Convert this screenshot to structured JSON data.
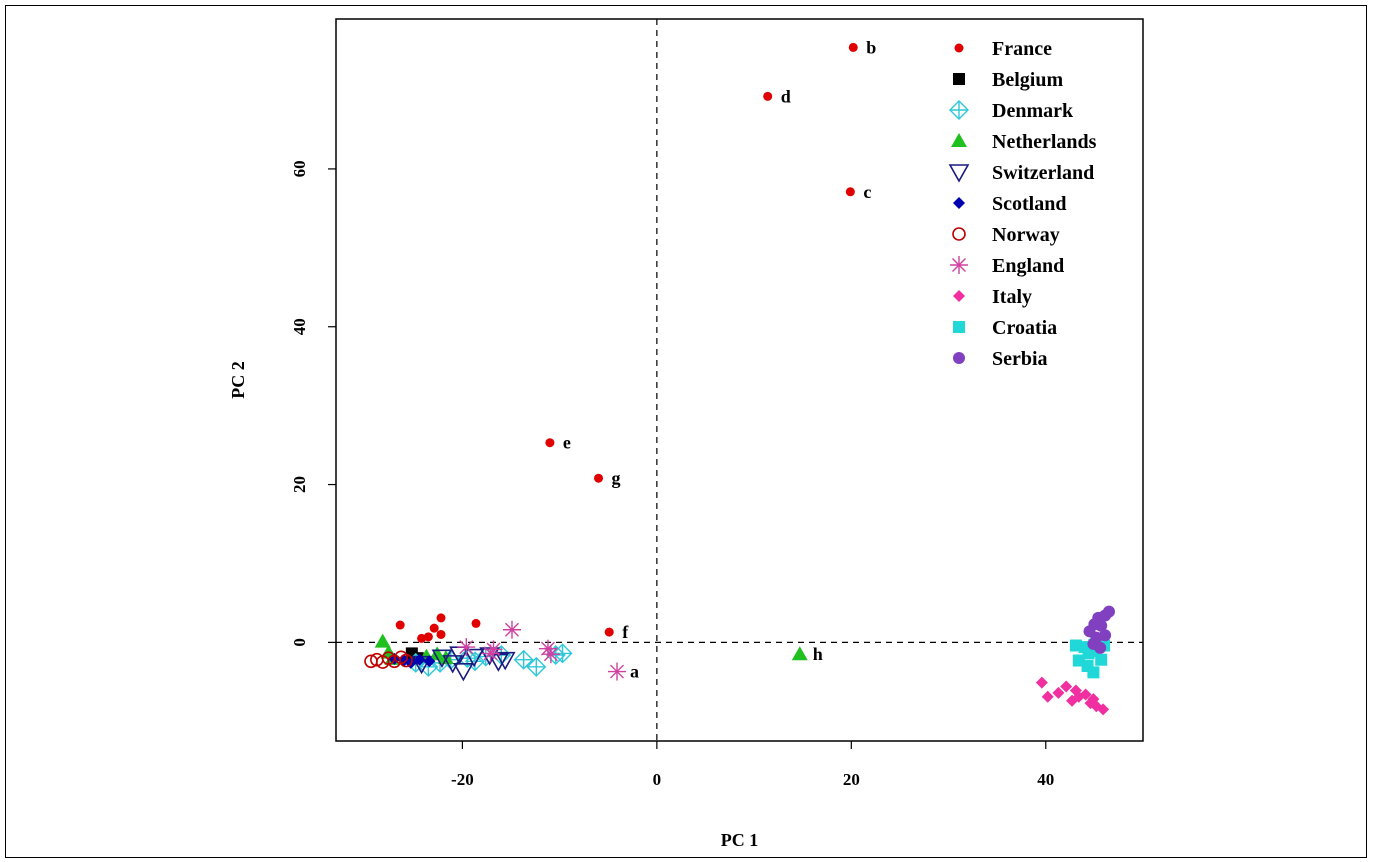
{
  "chart_data": {
    "type": "scatter",
    "xlabel": "PC 1",
    "ylabel": "PC 2",
    "xlim": [
      -33,
      50
    ],
    "ylim": [
      -12.5,
      79
    ],
    "x_ticks": [
      -20,
      0,
      20,
      40
    ],
    "y_ticks": [
      0,
      20,
      40,
      60
    ],
    "reference_lines": {
      "x": 0,
      "y": 0,
      "style": "dashed"
    },
    "legend_position": "top-right",
    "series": [
      {
        "name": "France",
        "marker": "dot",
        "color": "#e00000",
        "points": [
          [
            20.2,
            75.4
          ],
          [
            11.4,
            69.2
          ],
          [
            19.9,
            57.1
          ],
          [
            -11,
            25.3
          ],
          [
            -6,
            20.8
          ],
          [
            -4.9,
            1.3
          ],
          [
            -26.4,
            2.2
          ],
          [
            -24.2,
            0.5
          ],
          [
            -23.5,
            0.7
          ],
          [
            -22.2,
            3.1
          ],
          [
            -22.9,
            1.8
          ],
          [
            -22.2,
            1
          ],
          [
            -18.6,
            2.4
          ]
        ]
      },
      {
        "name": "Belgium",
        "marker": "square",
        "color": "#000000",
        "points": [
          [
            -25.2,
            -1.4
          ],
          [
            -24.6,
            -2
          ]
        ]
      },
      {
        "name": "Denmark",
        "marker": "diamond-plus",
        "color": "#30c8d8",
        "points": [
          [
            -24.8,
            -2.6
          ],
          [
            -23.5,
            -3.1
          ],
          [
            -22.3,
            -2.6
          ],
          [
            -21.2,
            -2.2
          ],
          [
            -19.5,
            -2
          ],
          [
            -18.7,
            -2.4
          ],
          [
            -17.6,
            -1.8
          ],
          [
            -16,
            -1.6
          ],
          [
            -13.7,
            -2.2
          ],
          [
            -12.4,
            -3.1
          ],
          [
            -10.4,
            -1.6
          ],
          [
            -9.7,
            -1.4
          ]
        ]
      },
      {
        "name": "Netherlands",
        "marker": "triangle",
        "color": "#20c020",
        "points": [
          [
            -28.2,
            0.1
          ],
          [
            -27.6,
            -1.3
          ],
          [
            -27.2,
            -2.1
          ],
          [
            -23.7,
            -1.8
          ],
          [
            -22.6,
            -1.5
          ],
          [
            -21.7,
            -2
          ],
          [
            14.7,
            -1.5
          ]
        ]
      },
      {
        "name": "Switzerland",
        "marker": "triangle-down",
        "color": "#1a1a80",
        "points": [
          [
            -24.2,
            -2.7
          ],
          [
            -22.1,
            -1.9
          ],
          [
            -21,
            -2.6
          ],
          [
            -20.3,
            -1.5
          ],
          [
            -19.9,
            -3.6
          ],
          [
            -18.8,
            -1.8
          ],
          [
            -17.2,
            -1.6
          ],
          [
            -16.3,
            -2.4
          ],
          [
            -15.6,
            -2.2
          ]
        ]
      },
      {
        "name": "Scotland",
        "marker": "diamond",
        "color": "#0000b0",
        "points": [
          [
            -27,
            -2.1
          ],
          [
            -26,
            -2.3
          ],
          [
            -25.3,
            -2.6
          ],
          [
            -24.4,
            -2.2
          ],
          [
            -23.4,
            -2.4
          ]
        ]
      },
      {
        "name": "Norway",
        "marker": "circle-open",
        "color": "#c00000",
        "points": [
          [
            -29.4,
            -2.4
          ],
          [
            -28.8,
            -2.2
          ],
          [
            -28.2,
            -2.5
          ],
          [
            -27.6,
            -2
          ],
          [
            -27,
            -2.4
          ],
          [
            -26.3,
            -1.9
          ],
          [
            -25.8,
            -2.3
          ]
        ]
      },
      {
        "name": "England",
        "marker": "star",
        "color": "#d040a0",
        "points": [
          [
            -19.6,
            -0.6
          ],
          [
            -17.1,
            -1.4
          ],
          [
            -16.8,
            -0.9
          ],
          [
            -14.9,
            1.6
          ],
          [
            -11.2,
            -0.8
          ],
          [
            -10.9,
            -1.5
          ],
          [
            -4.1,
            -3.7
          ]
        ]
      },
      {
        "name": "Italy",
        "marker": "diamond",
        "color": "#f030a0",
        "points": [
          [
            39.6,
            -5.1
          ],
          [
            40.2,
            -6.9
          ],
          [
            41.3,
            -6.4
          ],
          [
            42.1,
            -5.6
          ],
          [
            42.7,
            -7.4
          ],
          [
            43.4,
            -6.9
          ],
          [
            44.1,
            -6.6
          ],
          [
            44.6,
            -7.7
          ],
          [
            45.2,
            -8.1
          ],
          [
            45.9,
            -8.5
          ],
          [
            43.1,
            -6.1
          ],
          [
            44.9,
            -7.2
          ]
        ]
      },
      {
        "name": "Croatia",
        "marker": "square",
        "color": "#20d8d8",
        "points": [
          [
            43.1,
            -0.4
          ],
          [
            44,
            -0.6
          ],
          [
            45,
            -0.3
          ],
          [
            46,
            -0.4
          ],
          [
            44.4,
            -1.4
          ],
          [
            43.4,
            -2.3
          ],
          [
            44.3,
            -3
          ],
          [
            44.9,
            -3.8
          ],
          [
            45.7,
            -2.2
          ],
          [
            44.9,
            -1.1
          ]
        ]
      },
      {
        "name": "Serbia",
        "marker": "circle",
        "color": "#8040c0",
        "points": [
          [
            44.5,
            1.4
          ],
          [
            45,
            2.3
          ],
          [
            45.4,
            3.1
          ],
          [
            46.1,
            3.4
          ],
          [
            46.5,
            3.9
          ],
          [
            45.7,
            2.1
          ],
          [
            45.2,
            0.6
          ],
          [
            44.9,
            -0.2
          ],
          [
            45.6,
            -0.7
          ],
          [
            46.1,
            0.9
          ]
        ]
      }
    ],
    "annotations": [
      {
        "text": "a",
        "x": -4.1,
        "y": -3.7
      },
      {
        "text": "b",
        "x": 20.2,
        "y": 75.4
      },
      {
        "text": "c",
        "x": 19.9,
        "y": 57.1
      },
      {
        "text": "d",
        "x": 11.4,
        "y": 69.2
      },
      {
        "text": "e",
        "x": -11,
        "y": 25.3
      },
      {
        "text": "f",
        "x": -4.9,
        "y": 1.3
      },
      {
        "text": "g",
        "x": -6,
        "y": 20.8
      },
      {
        "text": "h",
        "x": 14.7,
        "y": -1.5
      }
    ]
  }
}
